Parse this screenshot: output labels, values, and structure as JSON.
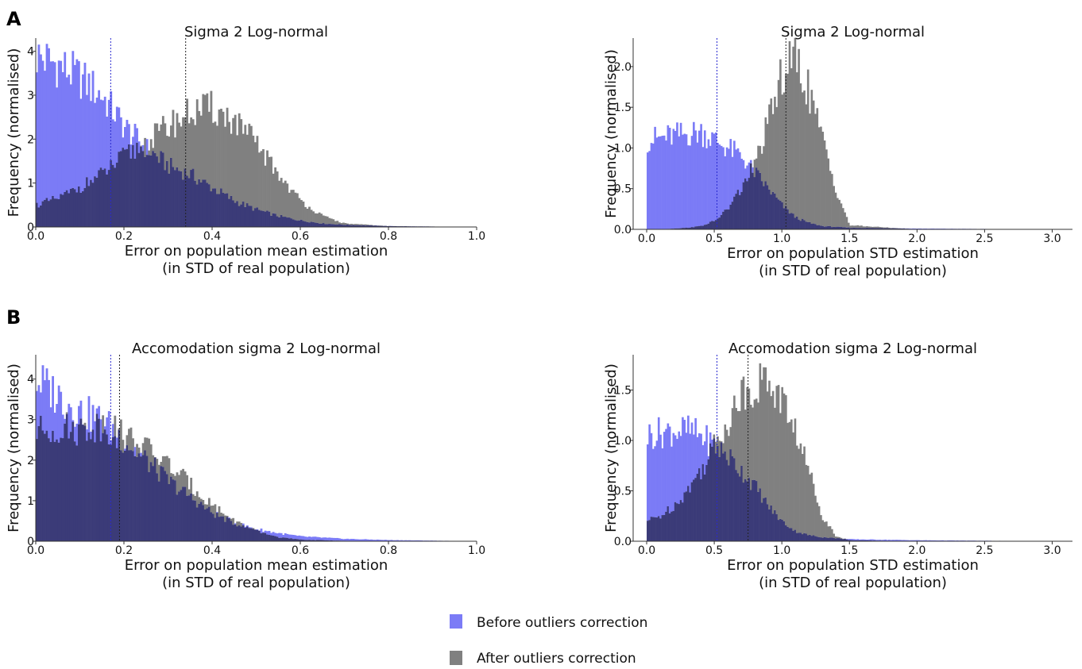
{
  "figure": {
    "panels": [
      {
        "letter": "A"
      },
      {
        "letter": "B"
      }
    ],
    "legend": {
      "placement": "bottom-center",
      "entries": [
        {
          "label": "Before outliers correction",
          "color": "#7b7bf6"
        },
        {
          "label": "After outliers correction",
          "color": "#808080"
        }
      ]
    }
  },
  "colors": {
    "before": "#7b7bf6",
    "after": "#808080",
    "overlap": "#3b3b78"
  },
  "chart_data": [
    {
      "type": "histogram",
      "panel": "A",
      "title": "Sigma 2 Log-normal",
      "xlabel": [
        "Error on population mean estimation",
        "(in STD of real population)"
      ],
      "ylabel": "Frequency (normalised)",
      "xlim": [
        0.0,
        1.0
      ],
      "ylim": [
        0,
        4.3
      ],
      "xticks": [
        "0.0",
        "0.2",
        "0.4",
        "0.6",
        "0.8",
        "1.0"
      ],
      "yticks": [
        "0",
        "1",
        "2",
        "3",
        "4"
      ],
      "grid": false,
      "series": [
        {
          "name": "Before outliers correction",
          "x": [
            0,
            0.05,
            0.1,
            0.15,
            0.2,
            0.25,
            0.3,
            0.35,
            0.4,
            0.45,
            0.5,
            0.55,
            0.6,
            0.65,
            0.7,
            0.8,
            1.0
          ],
          "y": [
            3.9,
            3.7,
            3.4,
            3.0,
            2.3,
            1.8,
            1.4,
            1.2,
            0.9,
            0.6,
            0.4,
            0.25,
            0.15,
            0.08,
            0.05,
            0.02,
            0.0
          ]
        },
        {
          "name": "After outliers correction",
          "x": [
            0,
            0.05,
            0.1,
            0.15,
            0.2,
            0.25,
            0.3,
            0.35,
            0.4,
            0.45,
            0.5,
            0.55,
            0.6,
            0.65,
            0.7,
            0.8,
            1.0
          ],
          "y": [
            0.5,
            0.65,
            0.9,
            1.2,
            1.6,
            1.9,
            2.3,
            2.6,
            2.7,
            2.4,
            1.9,
            1.2,
            0.6,
            0.25,
            0.08,
            0.02,
            0.0
          ]
        }
      ],
      "vlines": [
        {
          "x": 0.17,
          "series": "Before outliers correction"
        },
        {
          "x": 0.34,
          "series": "After outliers correction"
        }
      ]
    },
    {
      "type": "histogram",
      "panel": "A",
      "title": "Sigma 2 Log-normal",
      "xlabel": [
        "Error on population STD estimation",
        "(in STD of real population)"
      ],
      "ylabel": "Frequency (normalised)",
      "xlim": [
        -0.1,
        3.15
      ],
      "ylim": [
        0,
        2.35
      ],
      "xticks": [
        "0.0",
        "0.5",
        "1.0",
        "1.5",
        "2.0",
        "2.5",
        "3.0"
      ],
      "yticks": [
        "0.0",
        "0.5",
        "1.0",
        "1.5",
        "2.0"
      ],
      "grid": false,
      "series": [
        {
          "name": "Before outliers correction",
          "x": [
            0,
            0.1,
            0.2,
            0.3,
            0.4,
            0.5,
            0.6,
            0.7,
            0.8,
            0.9,
            1.0,
            1.1,
            1.2,
            1.3,
            1.4,
            1.5,
            2.0,
            3.0
          ],
          "y": [
            1.1,
            1.12,
            1.15,
            1.17,
            1.2,
            1.1,
            1.0,
            0.9,
            0.7,
            0.5,
            0.3,
            0.15,
            0.08,
            0.04,
            0.03,
            0.02,
            0.01,
            0.0
          ]
        },
        {
          "name": "After outliers correction",
          "x": [
            0,
            0.1,
            0.2,
            0.3,
            0.4,
            0.5,
            0.6,
            0.7,
            0.8,
            0.9,
            1.0,
            1.1,
            1.2,
            1.3,
            1.4,
            1.5,
            2.0,
            3.0
          ],
          "y": [
            0.0,
            0.0,
            0.01,
            0.02,
            0.04,
            0.1,
            0.25,
            0.5,
            0.8,
            1.3,
            1.9,
            2.1,
            1.7,
            1.1,
            0.5,
            0.05,
            0.0,
            0.0
          ]
        }
      ],
      "vlines": [
        {
          "x": 0.52,
          "series": "Before outliers correction"
        },
        {
          "x": 1.03,
          "series": "After outliers correction"
        }
      ]
    },
    {
      "type": "histogram",
      "panel": "B",
      "title": "Accomodation sigma 2 Log-normal",
      "xlabel": [
        "Error on population mean estimation",
        "(in STD of real population)"
      ],
      "ylabel": "Frequency (normalised)",
      "xlim": [
        0.0,
        1.0
      ],
      "ylim": [
        0,
        4.6
      ],
      "xticks": [
        "0.0",
        "0.2",
        "0.4",
        "0.6",
        "0.8",
        "1.0"
      ],
      "yticks": [
        "0",
        "1",
        "2",
        "3",
        "4"
      ],
      "grid": false,
      "series": [
        {
          "name": "Before outliers correction",
          "x": [
            0,
            0.05,
            0.1,
            0.15,
            0.2,
            0.25,
            0.3,
            0.35,
            0.4,
            0.45,
            0.5,
            0.55,
            0.6,
            0.7,
            0.8,
            1.0
          ],
          "y": [
            4.0,
            3.6,
            3.2,
            3.0,
            2.5,
            2.0,
            1.5,
            1.1,
            0.7,
            0.45,
            0.3,
            0.2,
            0.12,
            0.06,
            0.03,
            0.0
          ]
        },
        {
          "name": "After outliers correction",
          "x": [
            0,
            0.05,
            0.1,
            0.15,
            0.2,
            0.25,
            0.3,
            0.35,
            0.4,
            0.45,
            0.5,
            0.55,
            0.6,
            0.7,
            0.8,
            1.0
          ],
          "y": [
            2.7,
            2.8,
            2.75,
            2.9,
            2.6,
            2.3,
            1.9,
            1.4,
            0.9,
            0.5,
            0.25,
            0.1,
            0.04,
            0.01,
            0.0,
            0.0
          ]
        }
      ],
      "vlines": [
        {
          "x": 0.17,
          "series": "Before outliers correction"
        },
        {
          "x": 0.19,
          "series": "After outliers correction"
        }
      ]
    },
    {
      "type": "histogram",
      "panel": "B",
      "title": "Accomodation sigma 2 Log-normal",
      "xlabel": [
        "Error on population STD estimation",
        "(in STD of real population)"
      ],
      "ylabel": "Frequency (normalised)",
      "xlim": [
        -0.1,
        3.15
      ],
      "ylim": [
        0,
        1.85
      ],
      "xticks": [
        "0.0",
        "0.5",
        "1.0",
        "1.5",
        "2.0",
        "2.5",
        "3.0"
      ],
      "yticks": [
        "0.0",
        "0.5",
        "1.0",
        "1.5"
      ],
      "grid": false,
      "series": [
        {
          "name": "Before outliers correction",
          "x": [
            0,
            0.1,
            0.2,
            0.3,
            0.4,
            0.5,
            0.6,
            0.7,
            0.8,
            0.9,
            1.0,
            1.1,
            1.2,
            1.3,
            1.4,
            1.5,
            2.0,
            3.0
          ],
          "y": [
            1.05,
            1.08,
            1.1,
            1.1,
            1.05,
            0.95,
            0.85,
            0.7,
            0.55,
            0.35,
            0.2,
            0.1,
            0.06,
            0.04,
            0.03,
            0.02,
            0.01,
            0.0
          ]
        },
        {
          "name": "After outliers correction",
          "x": [
            0,
            0.1,
            0.2,
            0.3,
            0.4,
            0.5,
            0.6,
            0.7,
            0.8,
            0.9,
            1.0,
            1.1,
            1.2,
            1.3,
            1.4,
            1.5,
            2.0,
            3.0
          ],
          "y": [
            0.2,
            0.25,
            0.35,
            0.5,
            0.7,
            0.95,
            1.2,
            1.45,
            1.55,
            1.6,
            1.4,
            1.1,
            0.7,
            0.25,
            0.05,
            0.01,
            0.0,
            0.0
          ]
        }
      ],
      "vlines": [
        {
          "x": 0.52,
          "series": "Before outliers correction"
        },
        {
          "x": 0.75,
          "series": "After outliers correction"
        }
      ]
    }
  ]
}
